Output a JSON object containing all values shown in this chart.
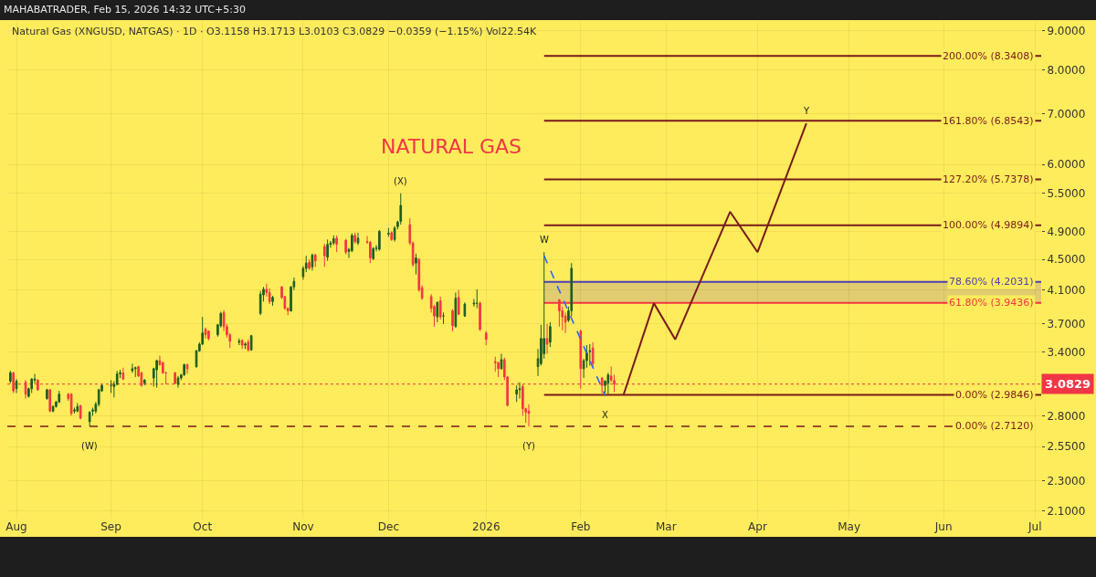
{
  "chart_data": {
    "type": "candlestick",
    "title": "NATURAL GAS",
    "subtitle": "Natural Gas (XNGUSD, NATGAS) · 1D · O3.1158 H3.1713 L3.0103 C3.0829 −0.0359 (−1.15%) Vol22.54K",
    "x": [
      "2025-07-30",
      "2025-07-31",
      "2025-08-01",
      "2025-08-04",
      "2025-08-05",
      "2025-08-06",
      "2025-08-07",
      "2025-08-08",
      "2025-08-11",
      "2025-08-12",
      "2025-08-13",
      "2025-08-14",
      "2025-08-15",
      "2025-08-18",
      "2025-08-19",
      "2025-08-20",
      "2025-08-21",
      "2025-08-22",
      "2025-08-25",
      "2025-08-26",
      "2025-08-27",
      "2025-08-28",
      "2025-08-29",
      "2025-09-01",
      "2025-09-02",
      "2025-09-03",
      "2025-09-04",
      "2025-09-05",
      "2025-09-08",
      "2025-09-09",
      "2025-09-10",
      "2025-09-11",
      "2025-09-12",
      "2025-09-15",
      "2025-09-16",
      "2025-09-17",
      "2025-09-18",
      "2025-09-19",
      "2025-09-22",
      "2025-09-23",
      "2025-09-24",
      "2025-09-25",
      "2025-09-26",
      "2025-09-29",
      "2025-09-30",
      "2025-10-01",
      "2025-10-02",
      "2025-10-03",
      "2025-10-06",
      "2025-10-07",
      "2025-10-08",
      "2025-10-09",
      "2025-10-10",
      "2025-10-13",
      "2025-10-14",
      "2025-10-15",
      "2025-10-16",
      "2025-10-17",
      "2025-10-20",
      "2025-10-21",
      "2025-10-22",
      "2025-10-23",
      "2025-10-24",
      "2025-10-27",
      "2025-10-28",
      "2025-10-29",
      "2025-10-30",
      "2025-10-31",
      "2025-11-03",
      "2025-11-04",
      "2025-11-05",
      "2025-11-06",
      "2025-11-07",
      "2025-11-10",
      "2025-11-11",
      "2025-11-12",
      "2025-11-13",
      "2025-11-14",
      "2025-11-17",
      "2025-11-18",
      "2025-11-19",
      "2025-11-20",
      "2025-11-21",
      "2025-11-24",
      "2025-11-25",
      "2025-11-26",
      "2025-11-27",
      "2025-11-28",
      "2025-12-01",
      "2025-12-02",
      "2025-12-03",
      "2025-12-04",
      "2025-12-05",
      "2025-12-08",
      "2025-12-09",
      "2025-12-10",
      "2025-12-11",
      "2025-12-12",
      "2025-12-15",
      "2025-12-16",
      "2025-12-17",
      "2025-12-18",
      "2025-12-19",
      "2025-12-22",
      "2025-12-23",
      "2025-12-24",
      "2025-12-26",
      "2025-12-29",
      "2025-12-30",
      "2025-12-31",
      "2026-01-02",
      "2026-01-05",
      "2026-01-06",
      "2026-01-07",
      "2026-01-08",
      "2026-01-09",
      "2026-01-12",
      "2026-01-13",
      "2026-01-14",
      "2026-01-15",
      "2026-01-16",
      "2026-01-19",
      "2026-01-20",
      "2026-01-21",
      "2026-01-22",
      "2026-01-23",
      "2026-01-26",
      "2026-01-27",
      "2026-01-28",
      "2026-01-29",
      "2026-01-30",
      "2026-02-02",
      "2026-02-03",
      "2026-02-04",
      "2026-02-05",
      "2026-02-06",
      "2026-02-09",
      "2026-02-10",
      "2026-02-11",
      "2026-02-12",
      "2026-02-13"
    ],
    "ohlc": [
      [
        3.11,
        3.21,
        3.09,
        3.19
      ],
      [
        3.19,
        3.2,
        3.0,
        3.02
      ],
      [
        3.04,
        3.13,
        3.0,
        3.11
      ],
      [
        3.1,
        3.12,
        2.95,
        2.99
      ],
      [
        2.97,
        3.05,
        2.96,
        3.04
      ],
      [
        3.04,
        3.14,
        3.0,
        3.13
      ],
      [
        3.12,
        3.18,
        3.09,
        3.13
      ],
      [
        3.12,
        3.13,
        3.02,
        3.03
      ],
      [
        2.95,
        3.04,
        2.94,
        3.03
      ],
      [
        3.03,
        3.04,
        2.83,
        2.84
      ],
      [
        2.84,
        2.89,
        2.83,
        2.88
      ],
      [
        2.88,
        2.93,
        2.87,
        2.92
      ],
      [
        2.92,
        3.02,
        2.91,
        2.99
      ],
      [
        2.99,
        3.0,
        2.93,
        2.95
      ],
      [
        2.99,
        3.0,
        2.8,
        2.82
      ],
      [
        2.84,
        2.87,
        2.82,
        2.85
      ],
      [
        2.84,
        2.91,
        2.83,
        2.88
      ],
      [
        2.89,
        2.89,
        2.77,
        2.78
      ],
      [
        2.75,
        2.84,
        2.71,
        2.83
      ],
      [
        2.84,
        2.87,
        2.8,
        2.85
      ],
      [
        2.84,
        2.92,
        2.82,
        2.9
      ],
      [
        2.9,
        3.04,
        2.88,
        3.03
      ],
      [
        3.02,
        3.08,
        3.01,
        3.07
      ],
      [
        3.07,
        3.12,
        3.0,
        3.07
      ],
      [
        3.06,
        3.11,
        2.96,
        3.08
      ],
      [
        3.08,
        3.21,
        3.07,
        3.18
      ],
      [
        3.18,
        3.22,
        3.14,
        3.19
      ],
      [
        3.19,
        3.24,
        3.12,
        3.13
      ],
      [
        3.21,
        3.28,
        3.19,
        3.23
      ],
      [
        3.23,
        3.25,
        3.15,
        3.24
      ],
      [
        3.25,
        3.26,
        3.15,
        3.16
      ],
      [
        3.19,
        3.2,
        3.06,
        3.07
      ],
      [
        3.09,
        3.13,
        3.07,
        3.12
      ],
      [
        3.14,
        3.24,
        3.06,
        3.23
      ],
      [
        3.22,
        3.32,
        3.05,
        3.31
      ],
      [
        3.31,
        3.36,
        3.26,
        3.27
      ],
      [
        3.29,
        3.3,
        3.18,
        3.19
      ],
      [
        3.19,
        3.2,
        3.08,
        3.19
      ],
      [
        3.19,
        3.2,
        3.08,
        3.09
      ],
      [
        3.08,
        3.16,
        3.05,
        3.14
      ],
      [
        3.14,
        3.18,
        3.12,
        3.17
      ],
      [
        3.17,
        3.28,
        3.16,
        3.27
      ],
      [
        3.27,
        3.28,
        3.18,
        3.23
      ],
      [
        3.25,
        3.42,
        3.24,
        3.41
      ],
      [
        3.41,
        3.5,
        3.4,
        3.48
      ],
      [
        3.48,
        3.78,
        3.47,
        3.6
      ],
      [
        3.64,
        3.66,
        3.54,
        3.58
      ],
      [
        3.62,
        3.63,
        3.52,
        3.54
      ],
      [
        3.58,
        3.7,
        3.56,
        3.69
      ],
      [
        3.68,
        3.84,
        3.66,
        3.82
      ],
      [
        3.83,
        3.86,
        3.62,
        3.67
      ],
      [
        3.67,
        3.7,
        3.55,
        3.58
      ],
      [
        3.58,
        3.6,
        3.44,
        3.51
      ],
      [
        3.5,
        3.54,
        3.47,
        3.51
      ],
      [
        3.52,
        3.53,
        3.43,
        3.47
      ],
      [
        3.47,
        3.5,
        3.43,
        3.48
      ],
      [
        3.5,
        3.53,
        3.4,
        3.42
      ],
      [
        3.42,
        3.58,
        3.41,
        3.57
      ],
      [
        3.82,
        4.09,
        3.8,
        4.05
      ],
      [
        4.04,
        4.14,
        3.96,
        4.11
      ],
      [
        4.11,
        4.18,
        4.02,
        4.07
      ],
      [
        4.07,
        4.12,
        3.93,
        3.96
      ],
      [
        3.96,
        4.03,
        3.91,
        4.01
      ],
      [
        4.14,
        4.15,
        3.99,
        4.01
      ],
      [
        4.02,
        4.03,
        3.86,
        3.88
      ],
      [
        3.88,
        3.89,
        3.8,
        3.85
      ],
      [
        3.85,
        4.15,
        3.84,
        4.14
      ],
      [
        4.14,
        4.26,
        4.1,
        4.21
      ],
      [
        4.27,
        4.41,
        4.23,
        4.38
      ],
      [
        4.38,
        4.55,
        4.33,
        4.45
      ],
      [
        4.46,
        4.5,
        4.36,
        4.38
      ],
      [
        4.4,
        4.58,
        4.35,
        4.56
      ],
      [
        4.56,
        4.58,
        4.4,
        4.48
      ],
      [
        4.68,
        4.72,
        4.4,
        4.55
      ],
      [
        4.53,
        4.78,
        4.48,
        4.71
      ],
      [
        4.71,
        4.76,
        4.66,
        4.73
      ],
      [
        4.73,
        4.84,
        4.7,
        4.79
      ],
      [
        4.8,
        4.84,
        4.6,
        4.71
      ],
      [
        4.77,
        4.79,
        4.57,
        4.6
      ],
      [
        4.61,
        4.66,
        4.52,
        4.64
      ],
      [
        4.62,
        4.87,
        4.6,
        4.84
      ],
      [
        4.84,
        4.88,
        4.72,
        4.75
      ],
      [
        4.73,
        4.88,
        4.7,
        4.8
      ],
      [
        4.75,
        4.83,
        4.72,
        4.74
      ],
      [
        4.74,
        4.76,
        4.45,
        4.52
      ],
      [
        4.51,
        4.67,
        4.49,
        4.65
      ],
      [
        4.65,
        4.7,
        4.61,
        4.66
      ],
      [
        4.64,
        4.92,
        4.62,
        4.9
      ],
      [
        4.86,
        4.95,
        4.82,
        4.87
      ],
      [
        4.88,
        4.9,
        4.76,
        4.78
      ],
      [
        4.78,
        4.98,
        4.75,
        4.95
      ],
      [
        4.97,
        5.06,
        4.93,
        5.04
      ],
      [
        5.05,
        5.5,
        5.0,
        5.3
      ],
      [
        5.0,
        5.1,
        4.7,
        4.73
      ],
      [
        4.73,
        4.75,
        4.4,
        4.43
      ],
      [
        4.45,
        4.58,
        4.3,
        4.52
      ],
      [
        4.5,
        4.52,
        4.08,
        4.1
      ],
      [
        4.13,
        4.16,
        3.98,
        4.0
      ],
      [
        4.02,
        4.05,
        3.83,
        3.88
      ],
      [
        3.9,
        3.92,
        3.67,
        3.79
      ],
      [
        3.78,
        3.96,
        3.72,
        3.95
      ],
      [
        3.97,
        4.02,
        3.75,
        3.78
      ],
      [
        3.79,
        3.83,
        3.7,
        3.79
      ],
      [
        3.85,
        3.87,
        3.62,
        3.68
      ],
      [
        3.67,
        4.07,
        3.66,
        4.0
      ],
      [
        4.01,
        4.1,
        3.8,
        3.81
      ],
      [
        3.79,
        3.95,
        3.78,
        3.93
      ],
      [
        3.93,
        3.99,
        3.9,
        3.94
      ],
      [
        3.94,
        4.11,
        3.88,
        3.94
      ],
      [
        3.94,
        3.96,
        3.62,
        3.64
      ],
      [
        3.6,
        3.62,
        3.47,
        3.53
      ],
      [
        3.3,
        3.35,
        3.2,
        3.29
      ],
      [
        3.29,
        3.3,
        3.15,
        3.23
      ],
      [
        3.23,
        3.38,
        3.22,
        3.32
      ],
      [
        3.32,
        3.34,
        3.12,
        3.15
      ],
      [
        3.15,
        3.16,
        2.88,
        2.89
      ],
      [
        2.99,
        3.07,
        2.92,
        3.03
      ],
      [
        3.03,
        3.1,
        2.95,
        3.04
      ],
      [
        3.06,
        3.08,
        2.8,
        2.86
      ],
      [
        2.86,
        2.87,
        2.74,
        2.83
      ],
      [
        2.84,
        2.9,
        2.71,
        2.82
      ],
      [
        3.25,
        3.43,
        3.16,
        3.33
      ],
      [
        3.28,
        3.69,
        3.26,
        3.54
      ],
      [
        3.38,
        4.6,
        3.33,
        3.54
      ],
      [
        3.54,
        3.7,
        3.38,
        3.48
      ],
      [
        3.5,
        3.72,
        3.45,
        3.67
      ],
      [
        3.98,
        3.99,
        3.67,
        3.85
      ],
      [
        3.85,
        3.9,
        3.63,
        3.78
      ],
      [
        3.79,
        3.83,
        3.6,
        3.72
      ],
      [
        3.74,
        3.9,
        3.72,
        3.85
      ],
      [
        3.85,
        4.45,
        3.79,
        4.38
      ],
      [
        3.62,
        3.64,
        3.04,
        3.23
      ],
      [
        3.23,
        3.33,
        3.14,
        3.31
      ],
      [
        3.31,
        3.47,
        3.24,
        3.39
      ],
      [
        3.4,
        3.48,
        3.26,
        3.41
      ],
      [
        3.44,
        3.5,
        3.25,
        3.28
      ],
      [
        3.14,
        3.15,
        3.0,
        3.07
      ],
      [
        3.07,
        3.12,
        3.0,
        3.11
      ],
      [
        3.09,
        3.19,
        2.99,
        3.17
      ],
      [
        3.16,
        3.25,
        3.1,
        3.12
      ],
      [
        3.1158,
        3.1713,
        3.0103,
        3.0829
      ]
    ],
    "series": [
      {
        "type": "line",
        "color": "#7a1b1b",
        "x": [
          "2026-02-16",
          "2026-02-26",
          "2026-03-05",
          "2026-03-23",
          "2026-04-01",
          "2026-04-17"
        ],
        "values": [
          2.98,
          3.94,
          3.53,
          5.2,
          4.6,
          6.8
        ]
      },
      {
        "type": "line",
        "color": "#2962ff",
        "line_style": "dashed",
        "x": [
          "2026-01-21",
          "2026-02-10"
        ],
        "values": [
          4.55,
          2.98
        ]
      }
    ],
    "ref_lines": [
      {
        "axis": "y",
        "value": 8.3408,
        "label": "200.00% (8.3408)",
        "color": "#7a1b1b"
      },
      {
        "axis": "y",
        "value": 6.8543,
        "label": "161.80% (6.8543)",
        "color": "#7a1b1b"
      },
      {
        "axis": "y",
        "value": 5.7378,
        "label": "127.20% (5.7378)",
        "color": "#7a1b1b"
      },
      {
        "axis": "y",
        "value": 4.9894,
        "label": "100.00% (4.9894)",
        "color": "#7a1b1b"
      },
      {
        "axis": "y",
        "value": 4.2031,
        "label": "78.60% (4.2031)",
        "color": "#4b3fb5"
      },
      {
        "axis": "y",
        "value": 3.9436,
        "label": "61.80% (3.9436)",
        "color": "#f23645"
      },
      {
        "axis": "y",
        "value": 2.9846,
        "label": "0.00% (2.9846)",
        "color": "#7a1b1b"
      },
      {
        "axis": "y",
        "value": 2.712,
        "label": "0.00% (2.7120)",
        "color": "#7a1b1b",
        "line_style": "dashed"
      },
      {
        "axis": "y",
        "value": 3.0829,
        "label": "3.0829",
        "color": "#f23645",
        "line_style": "dotted"
      }
    ],
    "bands": [
      {
        "axis": "y",
        "from": 3.9436,
        "to": 4.2031,
        "color": "#cdb97c"
      }
    ],
    "annotations": [
      "MAHABATRADER, Feb 15, 2026 14:32 UTC+5:30",
      {
        "text": "(W)",
        "x": "2025-08-25",
        "y": 2.71
      },
      {
        "text": "(X)",
        "x": "2025-12-05",
        "y": 5.5
      },
      {
        "text": "(Y)",
        "x": "2026-01-16",
        "y": 2.71
      },
      {
        "text": "W",
        "x": "2026-01-21",
        "y": 4.6
      },
      {
        "text": "X",
        "x": "2026-02-10",
        "y": 2.98
      },
      {
        "text": "Y",
        "x": "2026-04-17",
        "y": 6.8
      }
    ],
    "xlim": [
      "2025-07-29",
      "2026-07-03"
    ],
    "xticks": [
      {
        "value": "2025-08-01",
        "label": "Aug"
      },
      {
        "value": "2025-09-01",
        "label": "Sep"
      },
      {
        "value": "2025-10-01",
        "label": "Oct"
      },
      {
        "value": "2025-11-03",
        "label": "Nov"
      },
      {
        "value": "2025-12-01",
        "label": "Dec"
      },
      {
        "value": "2026-01-02",
        "label": "2026"
      },
      {
        "value": "2026-02-02",
        "label": "Feb"
      },
      {
        "value": "2026-03-02",
        "label": "Mar"
      },
      {
        "value": "2026-04-01",
        "label": "Apr"
      },
      {
        "value": "2026-05-01",
        "label": "May"
      },
      {
        "value": "2026-06-01",
        "label": "Jun"
      },
      {
        "value": "2026-07-01",
        "label": "Jul"
      }
    ],
    "ylim": [
      2.05,
      9.25
    ],
    "yticks": [
      {
        "value": 2.1,
        "label": "2.1000"
      },
      {
        "value": 2.3,
        "label": "2.3000"
      },
      {
        "value": 2.55,
        "label": "2.5500"
      },
      {
        "value": 2.8,
        "label": "2.8000"
      },
      {
        "value": 3.4,
        "label": "3.4000"
      },
      {
        "value": 3.7,
        "label": "3.7000"
      },
      {
        "value": 4.1,
        "label": "4.1000"
      },
      {
        "value": 4.5,
        "label": "4.5000"
      },
      {
        "value": 4.9,
        "label": "4.9000"
      },
      {
        "value": 5.5,
        "label": "5.5000"
      },
      {
        "value": 6,
        "label": "6.0000"
      },
      {
        "value": 7,
        "label": "7.0000"
      },
      {
        "value": 8,
        "label": "8.0000"
      },
      {
        "value": 9,
        "label": "9.0000"
      }
    ],
    "log": true,
    "grid": true
  }
}
